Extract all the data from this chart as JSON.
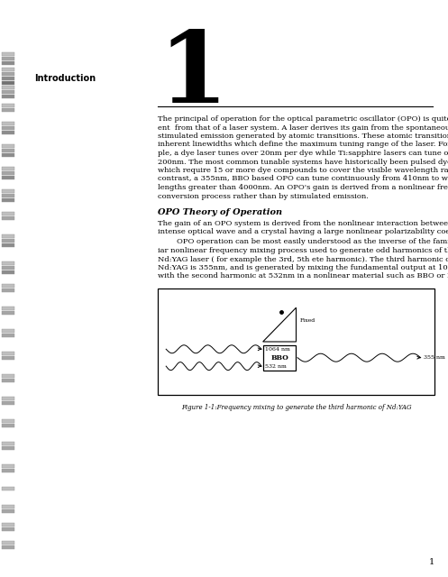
{
  "bg_color": "#ffffff",
  "page_width": 4.97,
  "page_height": 6.4,
  "dpi": 100,
  "chapter_number": "1",
  "section_label": "Introduction",
  "body_paragraph1": "The principal of operation for the optical parametric oscillator (OPO) is quite differ-\nent  from that of a laser system. A laser derives its gain from the spontaneous and\nstimulated emission generated by atomic transitions. These atomic transitions have\ninherent linewidths which define the maximum tuning range of the laser. For exam-\nple, a dye laser tunes over 20nm per dye while Ti:sapphire lasers can tune over\n200nm. The most common tunable systems have historically been pulsed dye lasers\nwhich require 15 or more dye compounds to cover the visible wavelength range. In\ncontrast, a 355nm, BBO based OPO can tune continuously from 410nm to wave-\nlengths greater than 4000nm. An OPO's gain is derived from a nonlinear frequency\nconversion process rather than by stimulated emission.",
  "subsection_title": "OPO Theory of Operation",
  "body_paragraph2": "The gain of an OPO system is derived from the nonlinear interaction between an\nintense optical wave and a crystal having a large nonlinear polarizability coefficient.",
  "body_paragraph3": "        OPO operation can be most easily understood as the inverse of the famil-\niar nonlinear frequency mixing process used to generate odd harmonics of the\nNd:YAG laser ( for example the 3rd, 5th ete harmonic). The third harmonic of\nNd:YAG is 355nm, and is generated by mixing the fundamental output at 1064nm\nwith the second harmonic at 532nm in a nonlinear material such as BBO or KDP.",
  "figure_caption": "Figure 1-1:Frequency mixing to generate the third harmonic of Nd:YAG",
  "page_number": "1"
}
